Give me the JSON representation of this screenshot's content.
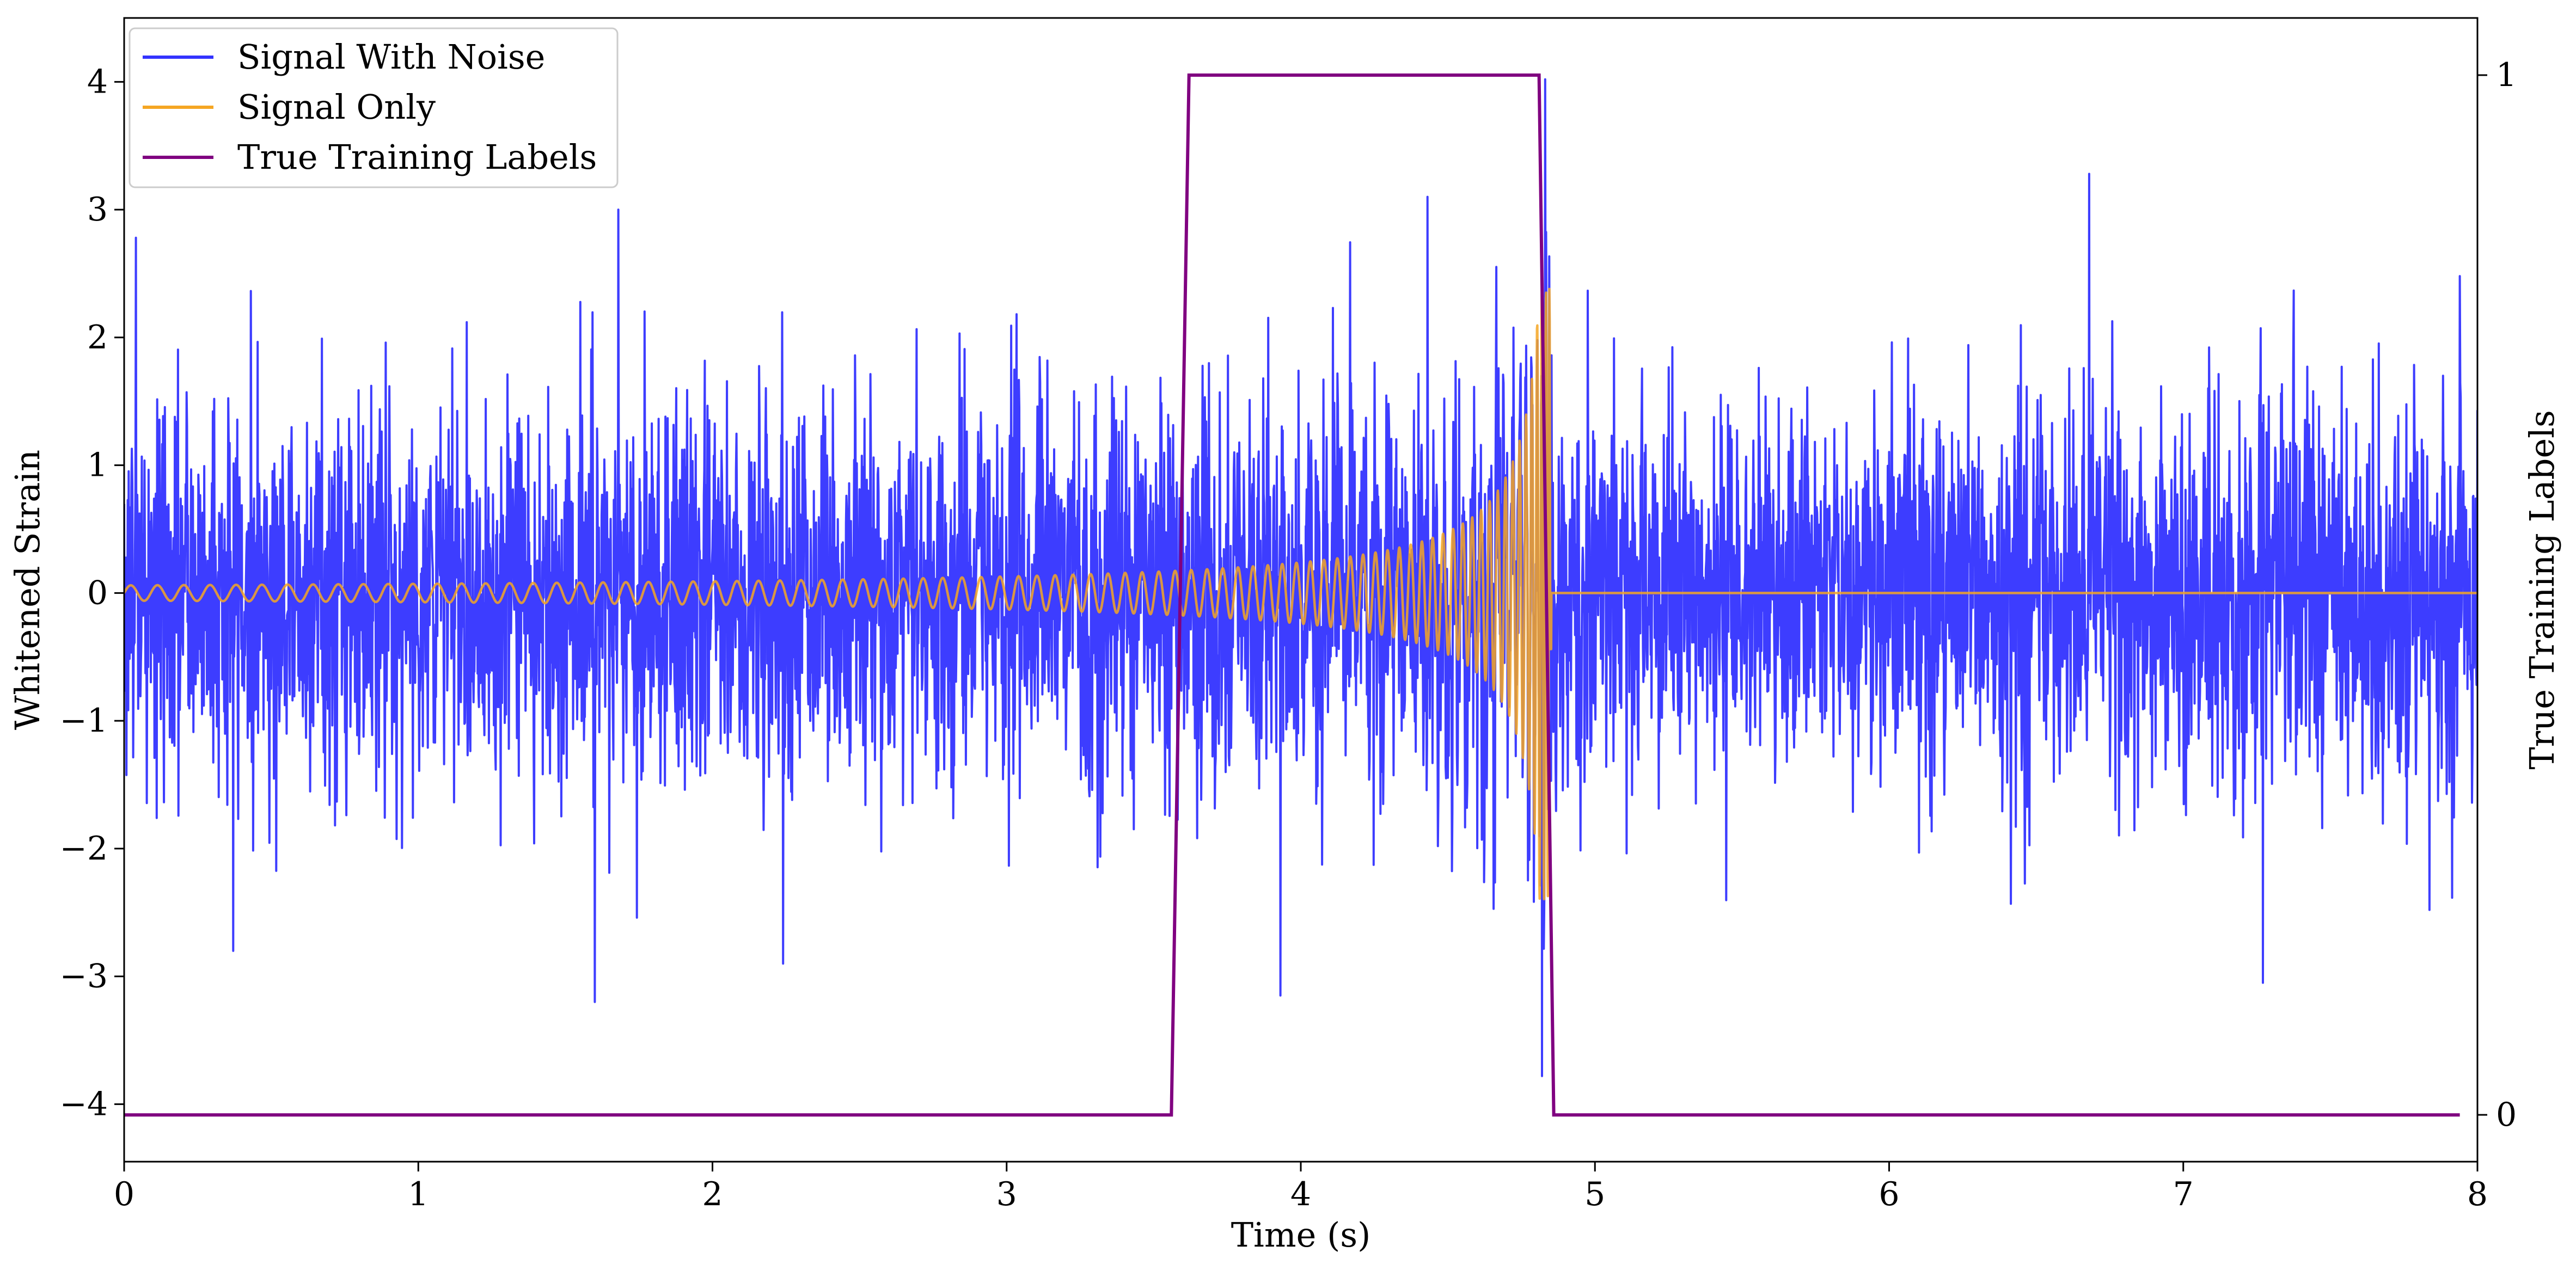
{
  "chart_data": {
    "type": "line",
    "title": "",
    "xlabel": "Time (s)",
    "ylabel": "Whitened Strain",
    "y2label": "True Training Labels",
    "xlim": [
      0,
      8
    ],
    "ylim": [
      -4.45,
      4.5
    ],
    "y2lim": [
      -0.045,
      1.055
    ],
    "xticks": [
      0,
      1,
      2,
      3,
      4,
      5,
      6,
      7,
      8
    ],
    "yticks": [
      4,
      3,
      2,
      1,
      0,
      -1,
      -2,
      -3,
      -4
    ],
    "ytick_labels": [
      "4",
      "3",
      "2",
      "1",
      "0",
      "−1",
      "−2",
      "−3",
      "−4"
    ],
    "y2ticks": [
      0,
      1
    ],
    "grid": false,
    "legend_position": "top-left",
    "series": [
      {
        "name": "Signal With Noise",
        "axis": "left",
        "color": "#3333ff",
        "kind": "noise",
        "sigma": 0.75,
        "t_start": 0,
        "t_end": 8,
        "peaks": [
          {
            "x": 0.04,
            "y": 2.78
          },
          {
            "x": 0.37,
            "y": -2.8
          },
          {
            "x": 1.6,
            "y": -3.2
          },
          {
            "x": 1.68,
            "y": 3.0
          },
          {
            "x": 2.24,
            "y": -2.9
          },
          {
            "x": 3.93,
            "y": -3.15
          },
          {
            "x": 4.43,
            "y": 3.1
          },
          {
            "x": 4.82,
            "y": -3.78
          },
          {
            "x": 4.83,
            "y": 4.02
          },
          {
            "x": 6.68,
            "y": 3.28
          },
          {
            "x": 7.27,
            "y": -3.05
          },
          {
            "x": 7.94,
            "y": 2.48
          }
        ]
      },
      {
        "name": "Signal Only",
        "axis": "left",
        "color": "#f5a623",
        "kind": "chirp",
        "t_start": 0,
        "t_merger": 4.84,
        "t_end": 8,
        "amp_start": 0.06,
        "amp_peak": 2.4,
        "freq_start": 11,
        "freq_peak": 250,
        "baseline": 0
      },
      {
        "name": "True Training Labels",
        "axis": "right",
        "color": "#800080",
        "kind": "step",
        "x": [
          0,
          3.56,
          3.62,
          4.81,
          4.86,
          7.94
        ],
        "y": [
          0,
          0,
          1,
          1,
          0,
          0
        ]
      }
    ]
  }
}
